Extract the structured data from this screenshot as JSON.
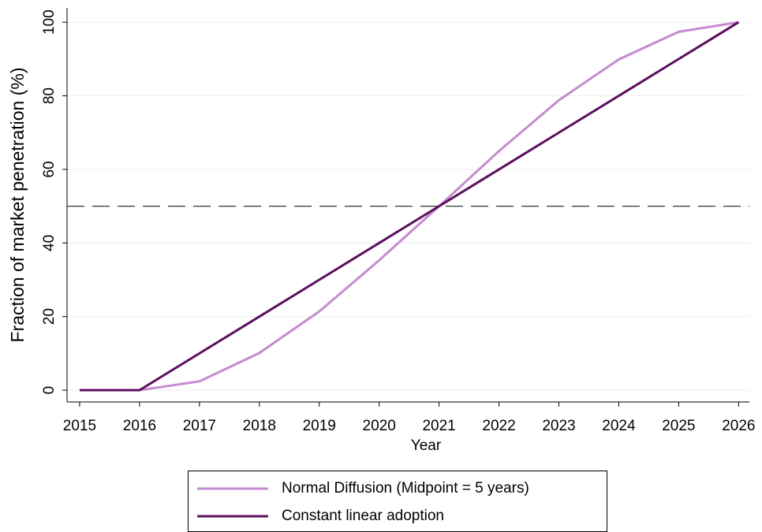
{
  "chart_data": {
    "type": "line",
    "x_label": "Year",
    "y_label": "Fraction of market penetration (%)",
    "x": [
      2015,
      2016,
      2017,
      2018,
      2019,
      2020,
      2021,
      2022,
      2023,
      2024,
      2025,
      2026
    ],
    "series": [
      {
        "name": "Normal Diffusion (Midpoint = 5 years)",
        "color": "#c58bd0",
        "values": [
          0,
          0,
          2.4,
          10.1,
          21.4,
          35.3,
          50,
          65,
          78.8,
          89.9,
          97.4,
          100
        ]
      },
      {
        "name": "Constant linear adoption",
        "color": "#5c0f5e",
        "values": [
          0,
          0,
          10,
          20,
          30,
          40,
          50,
          60,
          70,
          80,
          90,
          100
        ]
      }
    ],
    "hline": 50,
    "xlim": [
      2014.79,
      2026.18
    ],
    "xticks": [
      2015,
      2016,
      2017,
      2018,
      2019,
      2020,
      2021,
      2022,
      2023,
      2024,
      2025,
      2026
    ],
    "ylim": [
      -3.2,
      103.9
    ],
    "yticks": [
      0,
      20,
      40,
      60,
      80,
      100
    ],
    "grid": true,
    "legend": "bottom"
  }
}
